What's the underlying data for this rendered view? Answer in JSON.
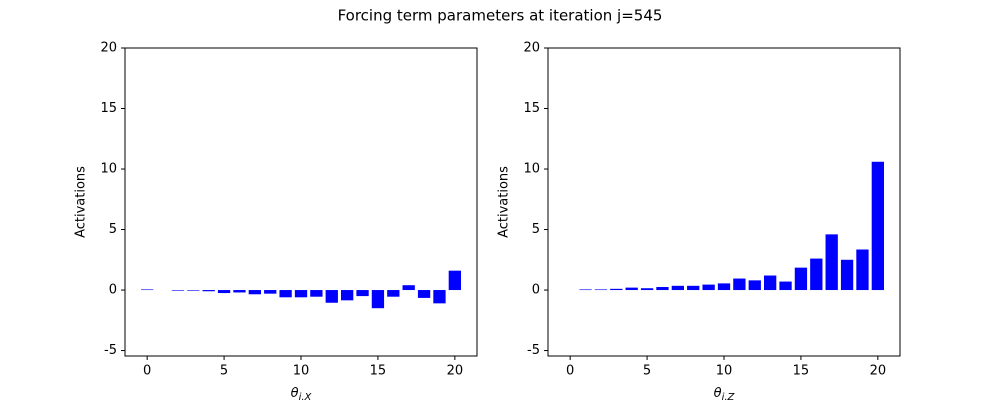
{
  "title": "Forcing term parameters at iteration j=545",
  "chart_data": [
    {
      "type": "bar",
      "ylabel": "Activations",
      "xlabel": "θ",
      "xlabel_subscript": "i,X",
      "x": [
        0,
        1,
        2,
        3,
        4,
        5,
        6,
        7,
        8,
        9,
        10,
        11,
        12,
        13,
        14,
        15,
        16,
        17,
        18,
        19,
        20
      ],
      "values": [
        0.05,
        0,
        -0.05,
        -0.05,
        -0.1,
        -0.25,
        -0.2,
        -0.35,
        -0.3,
        -0.6,
        -0.6,
        -0.55,
        -1.05,
        -0.85,
        -0.5,
        -1.5,
        -0.55,
        0.4,
        -0.65,
        -1.1,
        1.6
      ],
      "color": "#0000ff",
      "xlim": [
        -1.44,
        21.44
      ],
      "ylim": [
        -5.45,
        20
      ],
      "xticks": [
        0,
        5,
        10,
        15,
        20
      ],
      "yticks": [
        -5,
        0,
        5,
        10,
        15,
        20
      ],
      "grid": false
    },
    {
      "type": "bar",
      "ylabel": "Activations",
      "xlabel": "θ",
      "xlabel_subscript": "i,Z",
      "x": [
        0,
        1,
        2,
        3,
        4,
        5,
        6,
        7,
        8,
        9,
        10,
        11,
        12,
        13,
        14,
        15,
        16,
        17,
        18,
        19,
        20
      ],
      "values": [
        0,
        0.05,
        0.05,
        0.1,
        0.2,
        0.15,
        0.25,
        0.35,
        0.35,
        0.45,
        0.55,
        0.95,
        0.8,
        1.2,
        0.7,
        1.85,
        2.6,
        4.6,
        2.5,
        3.35,
        10.6
      ],
      "color": "#0000ff",
      "xlim": [
        -1.44,
        21.44
      ],
      "ylim": [
        -5.45,
        20
      ],
      "xticks": [
        0,
        5,
        10,
        15,
        20
      ],
      "yticks": [
        -5,
        0,
        5,
        10,
        15,
        20
      ],
      "grid": false
    }
  ]
}
